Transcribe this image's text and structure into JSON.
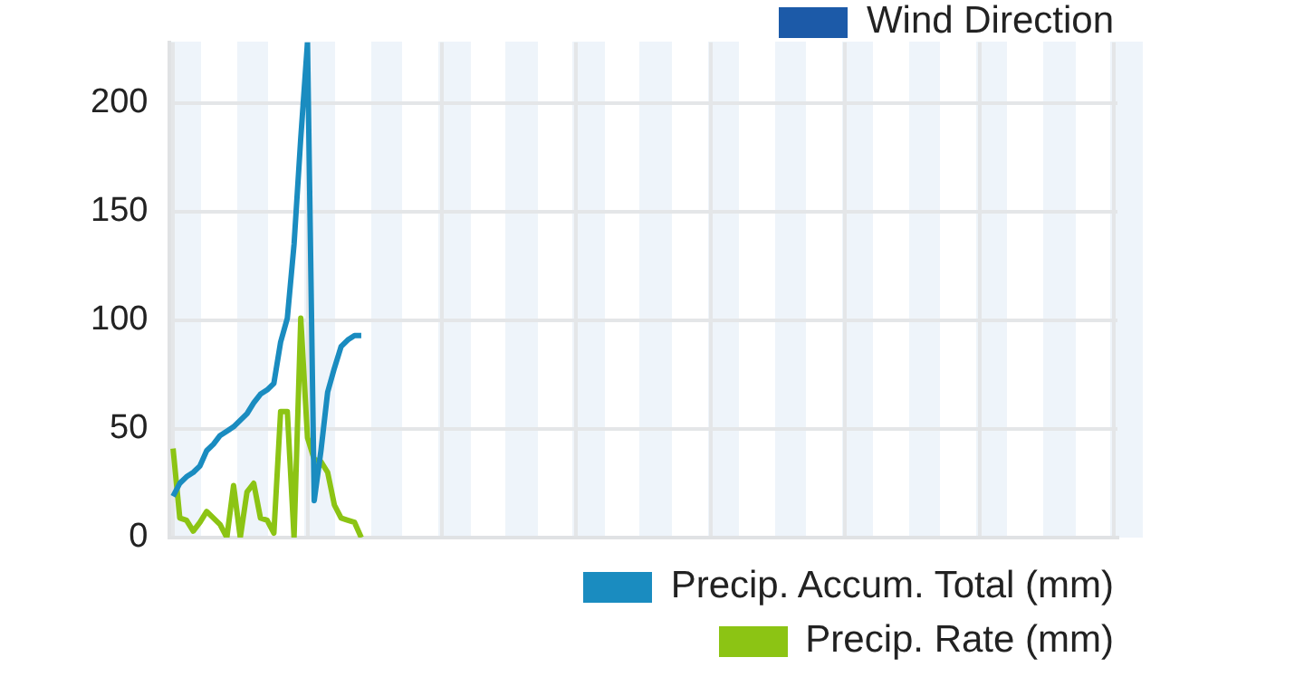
{
  "chart_data": {
    "type": "line",
    "tick_labels": "y",
    "grid": true,
    "legend": "bottom right",
    "marker": "none",
    "line_style": "solid",
    "categories": [
      null,
      null,
      null,
      null,
      null,
      null,
      null,
      null,
      null,
      null,
      null,
      null,
      null,
      null,
      null,
      null,
      null,
      null,
      null,
      null,
      null,
      null,
      null,
      null,
      null,
      null,
      null,
      null,
      null,
      null,
      null,
      null,
      null,
      null,
      null,
      null,
      null,
      null,
      null,
      null,
      null,
      null,
      null,
      null,
      null,
      null,
      null,
      null,
      null,
      null,
      null,
      null,
      null,
      null,
      null,
      null,
      null,
      null,
      null,
      null,
      null,
      null,
      null,
      null,
      null,
      null,
      null,
      null,
      null,
      null,
      null,
      null,
      null,
      null,
      null,
      null,
      null,
      null,
      null,
      null,
      null,
      null,
      null,
      null,
      null,
      null,
      null,
      null,
      null,
      null,
      null,
      null,
      null,
      null,
      null,
      null,
      null,
      null,
      null,
      null,
      null,
      null,
      null,
      null,
      null,
      null,
      null,
      null,
      null,
      null,
      null,
      null,
      null,
      null,
      null,
      null,
      null,
      null,
      null,
      null,
      null,
      null,
      null,
      null,
      null,
      null,
      null,
      null,
      null,
      null,
      null,
      null,
      null,
      null,
      null,
      null,
      null,
      null,
      null,
      null,
      null
    ],
    "ylim": [
      0,
      228
    ],
    "yticks": [
      0,
      50,
      100,
      150,
      200
    ],
    "series": [
      {
        "name": "Wind Direction",
        "color": "#1c5aa8",
        "values": [
          null,
          null,
          null,
          null,
          null,
          null,
          null,
          null,
          null,
          null,
          null,
          null,
          null,
          null,
          null,
          null,
          null,
          null,
          null,
          null,
          null,
          null,
          null,
          null,
          null,
          null,
          null,
          null,
          null,
          null,
          null,
          null,
          null,
          null,
          null,
          null,
          null,
          null,
          null,
          null,
          null,
          null,
          null,
          null,
          null,
          null,
          null,
          null,
          null,
          null,
          null,
          null,
          null,
          null,
          null,
          null,
          null,
          null,
          null,
          null,
          null,
          null,
          null,
          null,
          null,
          null,
          null,
          null,
          null,
          null,
          null,
          null,
          null,
          null,
          null,
          null,
          null,
          null,
          null,
          null,
          null,
          null,
          null,
          null,
          null,
          null,
          null,
          null,
          null,
          null,
          null,
          null,
          null,
          null,
          null,
          null,
          null,
          null,
          null,
          null,
          null,
          null,
          null,
          null,
          null,
          null,
          null,
          null,
          null,
          null,
          null,
          null,
          null,
          null,
          null,
          null,
          null,
          null,
          null,
          null,
          null,
          null,
          null,
          null,
          null,
          null,
          null,
          null,
          null,
          null,
          null,
          null,
          null,
          null,
          null,
          null,
          null,
          null,
          null,
          null,
          null
        ]
      },
      {
        "name": "Precip. Accum. Total (mm)",
        "color": "#1a8cc0",
        "values": [
          19,
          25,
          28,
          30,
          33,
          40,
          43,
          47,
          49,
          51,
          54,
          57,
          62,
          66,
          68,
          71,
          90,
          101,
          135,
          184,
          228,
          17,
          40,
          67,
          78,
          88,
          91,
          93,
          93,
          null,
          null,
          null,
          null,
          null,
          null,
          null,
          null,
          null,
          null,
          null,
          null,
          null,
          null,
          null,
          null,
          null,
          null,
          null,
          null,
          null,
          null,
          null,
          null,
          null,
          null,
          null,
          null,
          null,
          null,
          null,
          null,
          null,
          null,
          null,
          null,
          null,
          null,
          null,
          null,
          null,
          null,
          null,
          null,
          null,
          null,
          null,
          null,
          null,
          null,
          null,
          null,
          null,
          null,
          null,
          null,
          null,
          null,
          null,
          null,
          null,
          null,
          null,
          null,
          null,
          null,
          null,
          null,
          null,
          null,
          null,
          null,
          null,
          null,
          null,
          null,
          null,
          null,
          null,
          null,
          null,
          null,
          null,
          null,
          null,
          null,
          null,
          null,
          null,
          null,
          null,
          null,
          null,
          null,
          null,
          null,
          null,
          null,
          null,
          null,
          null,
          null,
          null,
          null,
          null,
          null,
          null,
          null,
          null,
          null,
          null,
          null
        ]
      },
      {
        "name": "Precip. Rate (mm)",
        "color": "#8cc414",
        "values": [
          41,
          9,
          8,
          3,
          7,
          12,
          9,
          6,
          0,
          24,
          0,
          21,
          25,
          9,
          8,
          2,
          58,
          58,
          0,
          101,
          46,
          36,
          35,
          30,
          15,
          9,
          8,
          7,
          0,
          null,
          null,
          null,
          null,
          null,
          null,
          null,
          null,
          null,
          null,
          null,
          null,
          null,
          null,
          null,
          null,
          null,
          null,
          null,
          null,
          null,
          null,
          null,
          null,
          null,
          null,
          null,
          null,
          null,
          null,
          null,
          null,
          null,
          null,
          null,
          null,
          null,
          null,
          null,
          null,
          null,
          null,
          null,
          null,
          null,
          null,
          null,
          null,
          null,
          null,
          null,
          null,
          null,
          null,
          null,
          null,
          null,
          null,
          null,
          null,
          null,
          null,
          null,
          null,
          null,
          null,
          null,
          null,
          null,
          null,
          null,
          null,
          null,
          null,
          null,
          null,
          null,
          null,
          null,
          null,
          null,
          null,
          null,
          null,
          null,
          null,
          null,
          null,
          null,
          null,
          null,
          null,
          null,
          null,
          null,
          null,
          null,
          null,
          null,
          null,
          null,
          null,
          null,
          null,
          null,
          null,
          null,
          null,
          null,
          null,
          null,
          null
        ]
      }
    ]
  }
}
